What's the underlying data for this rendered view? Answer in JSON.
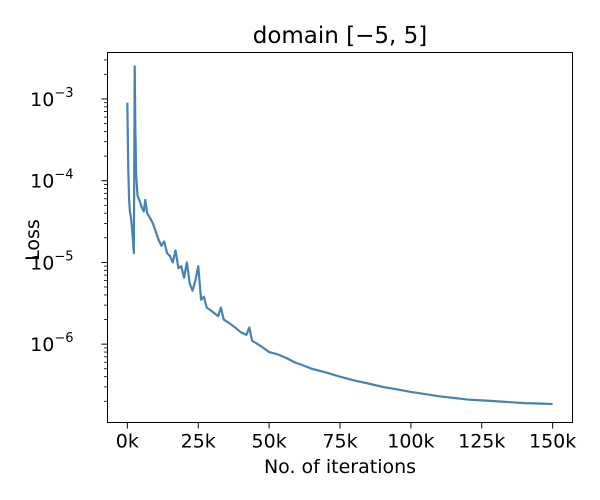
{
  "chart_data": {
    "type": "line",
    "title": "domain [−5, 5]",
    "xlabel": "No. of iterations",
    "ylabel": "Loss",
    "y_scale": "log",
    "xlim": [
      -7000,
      157000
    ],
    "ylim": [
      1.1e-07,
      0.0037
    ],
    "grid": false,
    "legend": "none",
    "x_ticks": [
      {
        "value": 0,
        "label": "0k"
      },
      {
        "value": 25000,
        "label": "25k"
      },
      {
        "value": 50000,
        "label": "50k"
      },
      {
        "value": 75000,
        "label": "75k"
      },
      {
        "value": 100000,
        "label": "100k"
      },
      {
        "value": 125000,
        "label": "125k"
      },
      {
        "value": 150000,
        "label": "150k"
      }
    ],
    "y_ticks": [
      {
        "value": 1e-06,
        "base": "10",
        "exponent": "−6"
      },
      {
        "value": 1e-05,
        "base": "10",
        "exponent": "−5"
      },
      {
        "value": 0.0001,
        "base": "10",
        "exponent": "−4"
      },
      {
        "value": 0.001,
        "base": "10",
        "exponent": "−3"
      }
    ],
    "series": [
      {
        "color": "#4682b4",
        "points": [
          [
            0,
            0.0009
          ],
          [
            300,
            0.00015
          ],
          [
            600,
            6e-05
          ],
          [
            900,
            4.2e-05
          ],
          [
            1300,
            3.5e-05
          ],
          [
            1700,
            2.5e-05
          ],
          [
            2000,
            1.8e-05
          ],
          [
            2300,
            1.3e-05
          ],
          [
            2600,
            0.0025
          ],
          [
            2800,
            0.0005
          ],
          [
            3100,
            0.00012
          ],
          [
            3600,
            6.5e-05
          ],
          [
            4200,
            5.8e-05
          ],
          [
            5000,
            4.8e-05
          ],
          [
            5800,
            4.2e-05
          ],
          [
            6300,
            5.8e-05
          ],
          [
            7000,
            4e-05
          ],
          [
            8000,
            3.5e-05
          ],
          [
            9000,
            3e-05
          ],
          [
            10000,
            2.4e-05
          ],
          [
            11000,
            1.9e-05
          ],
          [
            12000,
            1.6e-05
          ],
          [
            13000,
            1.8e-05
          ],
          [
            14000,
            1.3e-05
          ],
          [
            15000,
            1.2e-05
          ],
          [
            16000,
            1e-05
          ],
          [
            17000,
            1.4e-05
          ],
          [
            18000,
            8.5e-06
          ],
          [
            19000,
            9e-06
          ],
          [
            20000,
            6.5e-06
          ],
          [
            21000,
            1e-05
          ],
          [
            22000,
            5.5e-06
          ],
          [
            23000,
            4.5e-06
          ],
          [
            24000,
            6e-06
          ],
          [
            25000,
            9e-06
          ],
          [
            26000,
            3.5e-06
          ],
          [
            27000,
            3.8e-06
          ],
          [
            28000,
            2.8e-06
          ],
          [
            30000,
            2.5e-06
          ],
          [
            32000,
            2.2e-06
          ],
          [
            33000,
            2.8e-06
          ],
          [
            34000,
            2e-06
          ],
          [
            36000,
            1.8e-06
          ],
          [
            38000,
            1.6e-06
          ],
          [
            40000,
            1.4e-06
          ],
          [
            42000,
            1.3e-06
          ],
          [
            43000,
            1.6e-06
          ],
          [
            44000,
            1.1e-06
          ],
          [
            46000,
            1e-06
          ],
          [
            48000,
            9e-07
          ],
          [
            50000,
            8e-07
          ],
          [
            53000,
            7.5e-07
          ],
          [
            56000,
            6.8e-07
          ],
          [
            59000,
            6e-07
          ],
          [
            62000,
            5.5e-07
          ],
          [
            65000,
            5e-07
          ],
          [
            70000,
            4.5e-07
          ],
          [
            75000,
            4e-07
          ],
          [
            80000,
            3.6e-07
          ],
          [
            85000,
            3.3e-07
          ],
          [
            90000,
            3e-07
          ],
          [
            95000,
            2.8e-07
          ],
          [
            100000,
            2.6e-07
          ],
          [
            105000,
            2.45e-07
          ],
          [
            110000,
            2.3e-07
          ],
          [
            115000,
            2.2e-07
          ],
          [
            120000,
            2.1e-07
          ],
          [
            125000,
            2.05e-07
          ],
          [
            130000,
            2e-07
          ],
          [
            135000,
            1.95e-07
          ],
          [
            140000,
            1.9e-07
          ],
          [
            145000,
            1.88e-07
          ],
          [
            150000,
            1.85e-07
          ]
        ]
      }
    ]
  }
}
